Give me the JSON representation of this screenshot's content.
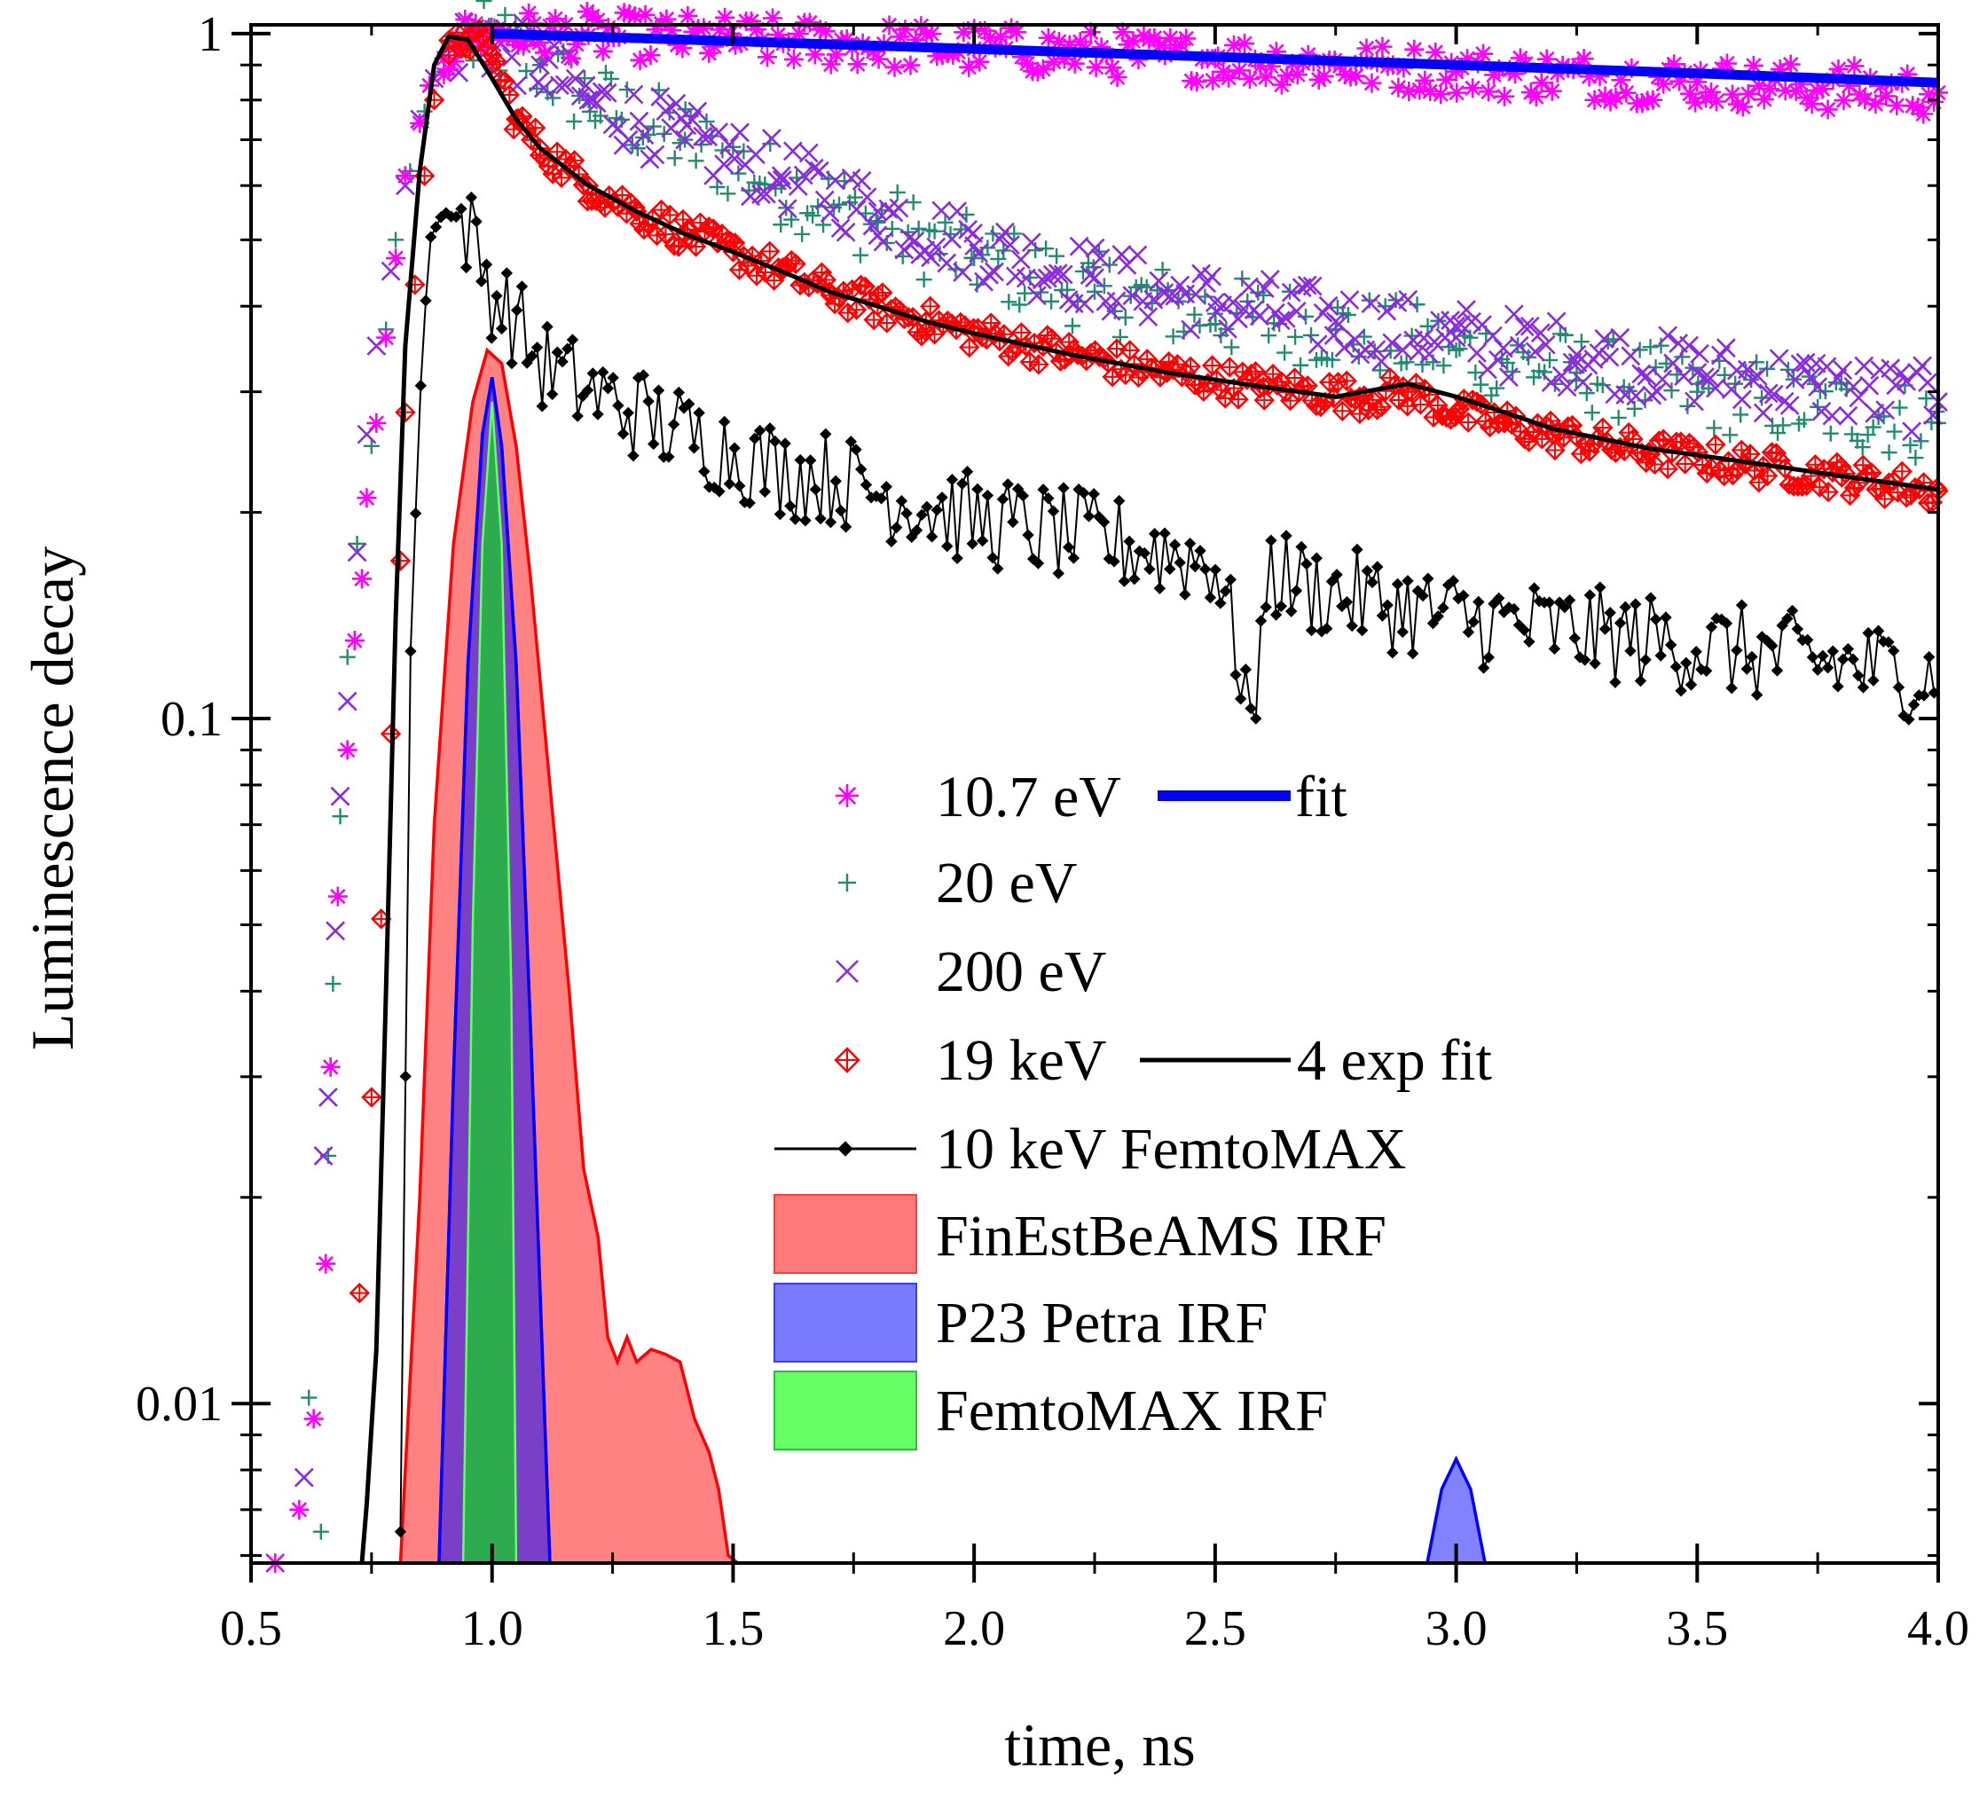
{
  "chart_data": {
    "type": "scatter",
    "xlabel": "time, ns",
    "ylabel": "Luminescence decay",
    "xlim": [
      0.5,
      4.0
    ],
    "ylim": [
      0.00585,
      1.03
    ],
    "yscale": "log",
    "x_ticks": [
      "0.5",
      "1.0",
      "1.5",
      "2.0",
      "2.5",
      "3.0",
      "3.5",
      "4.0"
    ],
    "y_ticks": [
      "0.01",
      "0.1",
      "1"
    ],
    "legend_position": "center-right",
    "series": [
      {
        "name": "10.7 eV",
        "marker": "asterisk",
        "color": "#ff00ff",
        "points": [
          [
            0.55,
            0.0055
          ],
          [
            0.6,
            0.007
          ],
          [
            0.63,
            0.0095
          ],
          [
            0.655,
            0.016
          ],
          [
            0.665,
            0.031
          ],
          [
            0.68,
            0.055
          ],
          [
            0.7,
            0.09
          ],
          [
            0.715,
            0.13
          ],
          [
            0.73,
            0.16
          ],
          [
            0.74,
            0.21
          ],
          [
            0.76,
            0.27
          ],
          [
            0.78,
            0.36
          ],
          [
            0.8,
            0.47
          ],
          [
            0.82,
            0.62
          ],
          [
            0.85,
            0.74
          ],
          [
            0.87,
            0.84
          ],
          [
            0.9,
            0.92
          ],
          [
            0.93,
            0.97
          ],
          [
            0.96,
            1.0
          ],
          [
            1.0,
            1.0
          ],
          [
            1.2,
            0.995
          ],
          [
            1.5,
            0.98
          ],
          [
            2.0,
            0.95
          ],
          [
            2.5,
            0.92
          ],
          [
            3.0,
            0.88
          ],
          [
            3.5,
            0.85
          ],
          [
            4.0,
            0.82
          ]
        ]
      },
      {
        "name": "20 eV",
        "marker": "plus",
        "color": "#1f8c6e",
        "points": [
          [
            0.62,
            0.0102
          ],
          [
            0.645,
            0.0065
          ],
          [
            0.66,
            0.023
          ],
          [
            0.67,
            0.041
          ],
          [
            0.685,
            0.072
          ],
          [
            0.7,
            0.123
          ],
          [
            0.72,
            0.18
          ],
          [
            0.75,
            0.25
          ],
          [
            0.78,
            0.37
          ],
          [
            0.8,
            0.5
          ],
          [
            0.83,
            0.63
          ],
          [
            0.86,
            0.77
          ],
          [
            0.9,
            0.88
          ],
          [
            0.95,
            0.96
          ],
          [
            1.0,
            0.98
          ],
          [
            1.1,
            0.9
          ],
          [
            1.2,
            0.8
          ],
          [
            1.4,
            0.7
          ],
          [
            1.6,
            0.6
          ],
          [
            1.8,
            0.53
          ],
          [
            2.0,
            0.47
          ],
          [
            2.25,
            0.42
          ],
          [
            2.5,
            0.39
          ],
          [
            2.75,
            0.37
          ],
          [
            3.0,
            0.345
          ],
          [
            3.25,
            0.32
          ],
          [
            3.5,
            0.3
          ],
          [
            3.75,
            0.285
          ],
          [
            4.0,
            0.27
          ]
        ]
      },
      {
        "name": "200 eV",
        "marker": "cross",
        "color": "#8a2be2",
        "points": [
          [
            0.55,
            0.0055
          ],
          [
            0.61,
            0.0078
          ],
          [
            0.65,
            0.023
          ],
          [
            0.66,
            0.028
          ],
          [
            0.675,
            0.049
          ],
          [
            0.685,
            0.077
          ],
          [
            0.7,
            0.106
          ],
          [
            0.72,
            0.175
          ],
          [
            0.74,
            0.26
          ],
          [
            0.76,
            0.35
          ],
          [
            0.79,
            0.45
          ],
          [
            0.82,
            0.6
          ],
          [
            0.85,
            0.75
          ],
          [
            0.88,
            0.86
          ],
          [
            0.92,
            0.95
          ],
          [
            0.97,
            0.99
          ],
          [
            1.0,
            0.97
          ],
          [
            1.1,
            0.9
          ],
          [
            1.2,
            0.8
          ],
          [
            1.4,
            0.7
          ],
          [
            1.6,
            0.62
          ],
          [
            1.8,
            0.55
          ],
          [
            2.0,
            0.49
          ],
          [
            2.25,
            0.44
          ],
          [
            2.5,
            0.405
          ],
          [
            2.75,
            0.38
          ],
          [
            3.0,
            0.36
          ],
          [
            3.25,
            0.34
          ],
          [
            3.5,
            0.32
          ],
          [
            3.75,
            0.305
          ],
          [
            4.0,
            0.29
          ]
        ]
      },
      {
        "name": "19 keV",
        "marker": "diamond-plus",
        "color": "#ff0000",
        "points": [
          [
            0.725,
            0.0145
          ],
          [
            0.75,
            0.028
          ],
          [
            0.77,
            0.051
          ],
          [
            0.79,
            0.095
          ],
          [
            0.81,
            0.17
          ],
          [
            0.82,
            0.28
          ],
          [
            0.84,
            0.43
          ],
          [
            0.86,
            0.62
          ],
          [
            0.88,
            0.8
          ],
          [
            0.91,
            0.93
          ],
          [
            0.95,
            0.99
          ],
          [
            1.0,
            0.93
          ],
          [
            1.05,
            0.75
          ],
          [
            1.1,
            0.68
          ],
          [
            1.2,
            0.6
          ],
          [
            1.3,
            0.55
          ],
          [
            1.4,
            0.51
          ],
          [
            1.5,
            0.48
          ],
          [
            1.6,
            0.45
          ],
          [
            1.7,
            0.42
          ],
          [
            1.8,
            0.4
          ],
          [
            1.9,
            0.38
          ],
          [
            2.0,
            0.365
          ],
          [
            2.2,
            0.34
          ],
          [
            2.4,
            0.32
          ],
          [
            2.6,
            0.305
          ],
          [
            2.8,
            0.295
          ],
          [
            2.9,
            0.3
          ],
          [
            3.0,
            0.28
          ],
          [
            3.1,
            0.27
          ],
          [
            3.2,
            0.26
          ],
          [
            3.4,
            0.245
          ],
          [
            3.6,
            0.235
          ],
          [
            3.8,
            0.225
          ],
          [
            4.0,
            0.215
          ]
        ]
      },
      {
        "name": "10 keV FemtoMAX",
        "marker": "line-diamond",
        "color": "#000000",
        "points": [
          [
            0.81,
            0.0065
          ],
          [
            0.83,
            0.12
          ],
          [
            0.85,
            0.29
          ],
          [
            0.87,
            0.5
          ],
          [
            0.9,
            0.55
          ],
          [
            0.95,
            0.52
          ],
          [
            1.0,
            0.42
          ],
          [
            1.05,
            0.38
          ],
          [
            1.1,
            0.33
          ],
          [
            1.2,
            0.3
          ],
          [
            1.3,
            0.28
          ],
          [
            1.4,
            0.26
          ],
          [
            1.5,
            0.245
          ],
          [
            1.6,
            0.23
          ],
          [
            1.7,
            0.225
          ],
          [
            1.8,
            0.215
          ],
          [
            1.9,
            0.205
          ],
          [
            2.0,
            0.195
          ],
          [
            2.1,
            0.19
          ],
          [
            2.2,
            0.185
          ],
          [
            2.3,
            0.18
          ],
          [
            2.4,
            0.175
          ],
          [
            2.5,
            0.17
          ],
          [
            2.58,
            0.1
          ],
          [
            2.6,
            0.165
          ],
          [
            2.7,
            0.155
          ],
          [
            2.8,
            0.15
          ],
          [
            2.9,
            0.145
          ],
          [
            3.0,
            0.14
          ],
          [
            3.2,
            0.135
          ],
          [
            3.4,
            0.13
          ],
          [
            3.6,
            0.125
          ],
          [
            3.8,
            0.12
          ],
          [
            4.0,
            0.115
          ]
        ]
      },
      {
        "name": "fit",
        "style": "line",
        "color": "#0000ff",
        "points": [
          [
            1.0,
            1.0
          ],
          [
            1.5,
            0.975
          ],
          [
            2.0,
            0.95
          ],
          [
            2.5,
            0.925
          ],
          [
            3.0,
            0.9
          ],
          [
            3.5,
            0.875
          ],
          [
            4.0,
            0.848
          ]
        ]
      },
      {
        "name": "4 exp fit",
        "style": "line",
        "color": "#000000",
        "points": [
          [
            0.73,
            0.0055
          ],
          [
            0.76,
            0.012
          ],
          [
            0.78,
            0.04
          ],
          [
            0.8,
            0.14
          ],
          [
            0.82,
            0.35
          ],
          [
            0.85,
            0.63
          ],
          [
            0.88,
            0.9
          ],
          [
            0.91,
            0.99
          ],
          [
            0.95,
            0.98
          ],
          [
            1.0,
            0.86
          ],
          [
            1.05,
            0.75
          ],
          [
            1.1,
            0.68
          ],
          [
            1.2,
            0.6
          ],
          [
            1.3,
            0.55
          ],
          [
            1.4,
            0.51
          ],
          [
            1.5,
            0.48
          ],
          [
            1.6,
            0.45
          ],
          [
            1.7,
            0.42
          ],
          [
            1.8,
            0.4
          ],
          [
            1.9,
            0.38
          ],
          [
            2.0,
            0.365
          ],
          [
            2.2,
            0.34
          ],
          [
            2.4,
            0.32
          ],
          [
            2.6,
            0.305
          ],
          [
            2.75,
            0.295
          ],
          [
            2.9,
            0.308
          ],
          [
            3.0,
            0.295
          ],
          [
            3.1,
            0.28
          ],
          [
            3.2,
            0.265
          ],
          [
            3.4,
            0.248
          ],
          [
            3.6,
            0.237
          ],
          [
            3.8,
            0.226
          ],
          [
            4.0,
            0.216
          ]
        ]
      },
      {
        "name": "FinEstBeAMS IRF",
        "style": "filled-area",
        "color": "#ff7b7b",
        "stroke": "#ff0000",
        "points": [
          [
            0.81,
            0.0055
          ],
          [
            0.82,
            0.008
          ],
          [
            0.85,
            0.02
          ],
          [
            0.88,
            0.07
          ],
          [
            0.92,
            0.18
          ],
          [
            0.96,
            0.29
          ],
          [
            0.99,
            0.345
          ],
          [
            1.02,
            0.33
          ],
          [
            1.05,
            0.25
          ],
          [
            1.08,
            0.16
          ],
          [
            1.12,
            0.08
          ],
          [
            1.16,
            0.04
          ],
          [
            1.19,
            0.022
          ],
          [
            1.22,
            0.0175
          ],
          [
            1.24,
            0.0125
          ],
          [
            1.26,
            0.0115
          ],
          [
            1.28,
            0.0125
          ],
          [
            1.3,
            0.0115
          ],
          [
            1.33,
            0.012
          ],
          [
            1.36,
            0.0118
          ],
          [
            1.39,
            0.0115
          ],
          [
            1.42,
            0.0095
          ],
          [
            1.45,
            0.0085
          ],
          [
            1.47,
            0.0075
          ],
          [
            1.49,
            0.006
          ],
          [
            1.51,
            0.0055
          ]
        ]
      },
      {
        "name": "P23 Petra IRF",
        "style": "filled-area",
        "color": "#7b7bff",
        "stroke": "#0000ff",
        "points": [
          [
            0.89,
            0.0055
          ],
          [
            0.92,
            0.03
          ],
          [
            0.95,
            0.12
          ],
          [
            0.98,
            0.26
          ],
          [
            1.0,
            0.315
          ],
          [
            1.02,
            0.25
          ],
          [
            1.05,
            0.12
          ],
          [
            1.08,
            0.035
          ],
          [
            1.12,
            0.0055
          ],
          [
            2.94,
            0.0055
          ],
          [
            2.97,
            0.0075
          ],
          [
            3.0,
            0.0083
          ],
          [
            3.03,
            0.0075
          ],
          [
            3.06,
            0.0055
          ]
        ]
      },
      {
        "name": "FemtoMAX IRF",
        "style": "filled-area",
        "color": "#66ff66",
        "stroke": "#33dd33",
        "points": [
          [
            0.94,
            0.0055
          ],
          [
            0.96,
            0.05
          ],
          [
            0.98,
            0.18
          ],
          [
            1.0,
            0.29
          ],
          [
            1.02,
            0.18
          ],
          [
            1.04,
            0.04
          ],
          [
            1.05,
            0.0055
          ]
        ]
      }
    ]
  },
  "legend": [
    {
      "label": "10.7 eV",
      "marker": "asterisk",
      "color": "#ff00ff"
    },
    {
      "label": "fit",
      "color": "#0000ff"
    },
    {
      "label": "20 eV",
      "marker": "plus",
      "color": "#1f8c6e"
    },
    {
      "label": "200 eV",
      "marker": "cross",
      "color": "#8a2be2"
    },
    {
      "label": "19 keV",
      "marker": "diamond-plus",
      "color": "#ff0000"
    },
    {
      "label": "4 exp fit",
      "color": "#000000"
    },
    {
      "label": "10 keV FemtoMAX",
      "marker": "line-diamond",
      "color": "#000000"
    },
    {
      "label": "FinEstBeAMS IRF",
      "color": "#ff7b7b"
    },
    {
      "label": "P23 Petra IRF",
      "color": "#7b7bff"
    },
    {
      "label": "FemtoMAX IRF",
      "color": "#66ff66"
    }
  ]
}
